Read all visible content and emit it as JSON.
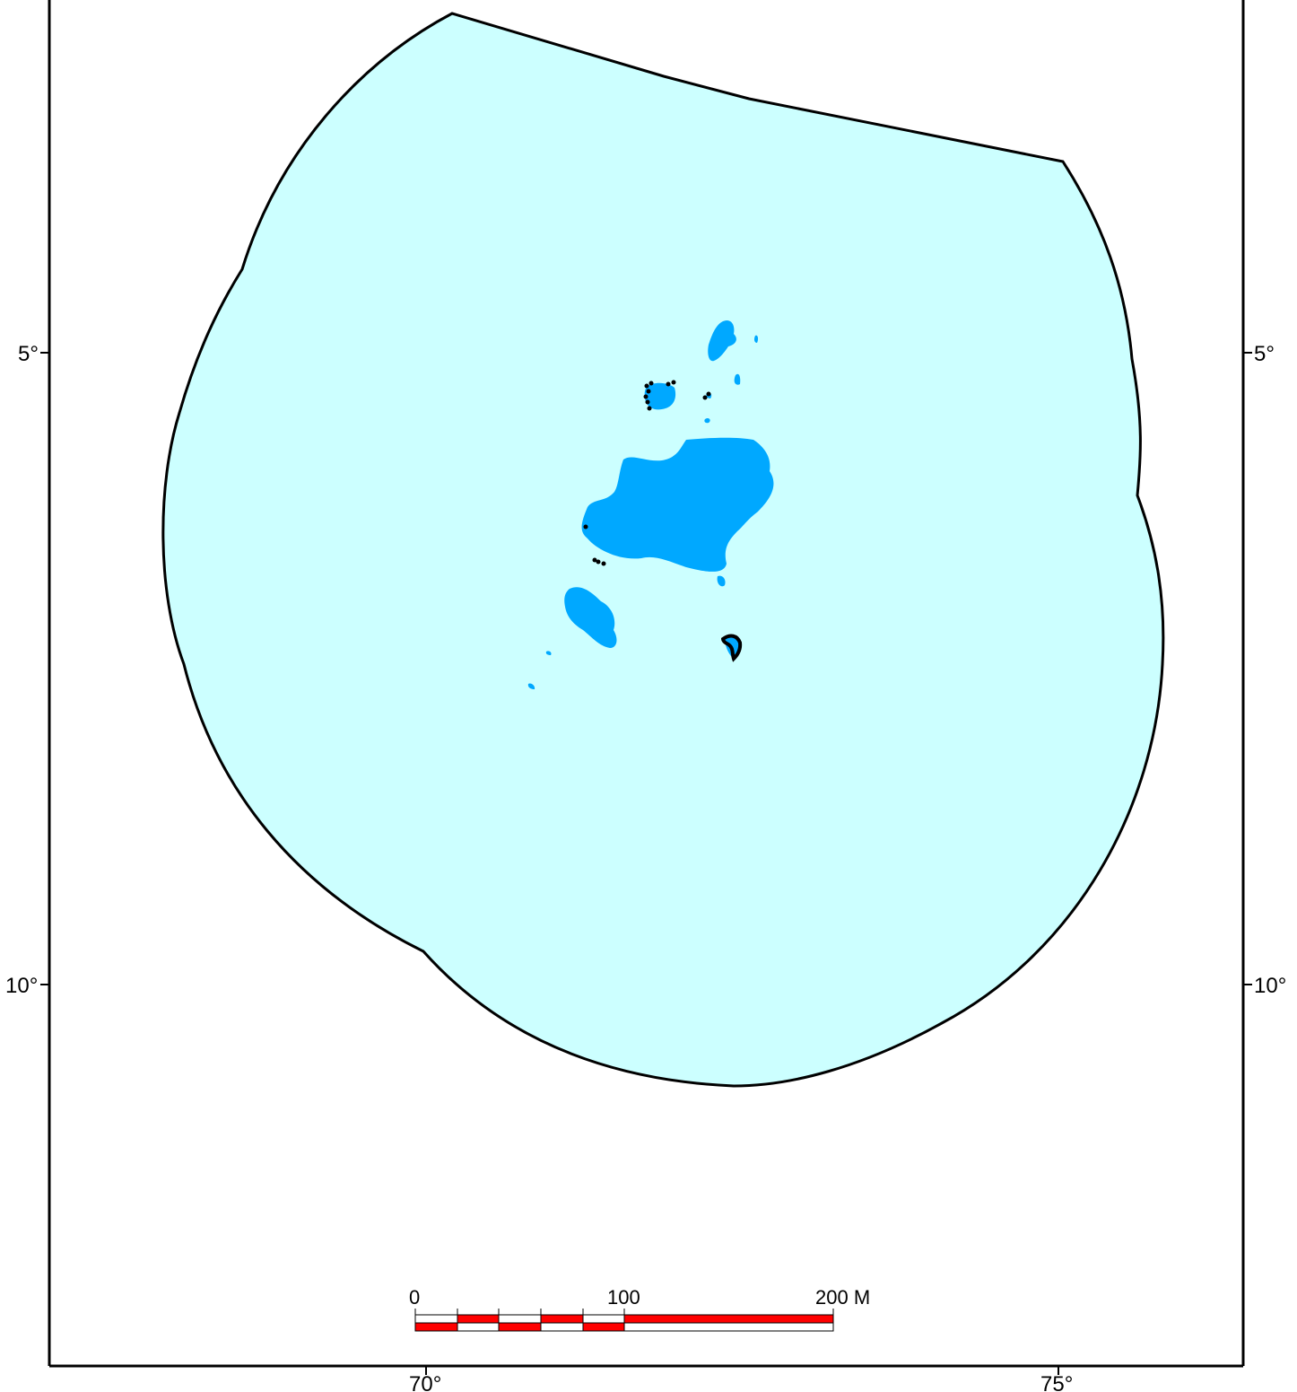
{
  "map": {
    "colors": {
      "zone_fill": "#ccffff",
      "zone_stroke": "#000000",
      "land_fill": "#00a8ff",
      "reef_marker": "#000000",
      "scale_red": "#ff0000",
      "scale_white": "#ffffff",
      "frame": "#000000"
    },
    "latitude_labels": {
      "lat5_left": "5°",
      "lat5_right": "5°",
      "lat10_left": "10°",
      "lat10_right": "10°"
    },
    "longitude_labels": {
      "lon70": "70°",
      "lon75": "75°"
    },
    "scale_bar": {
      "label_0": "0",
      "label_100": "100",
      "label_200": "200 M"
    }
  }
}
